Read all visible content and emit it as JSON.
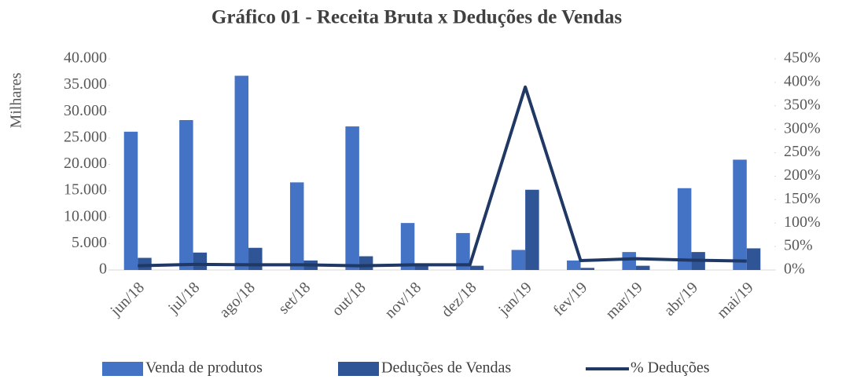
{
  "chart_data": {
    "type": "bar_line",
    "title": "Gráfico 01 - Receita Bruta x Deduções de Vendas",
    "y_label": "Milhares",
    "categories": [
      "jun/18",
      "jul/18",
      "ago/18",
      "set/18",
      "out/18",
      "nov/18",
      "dez/18",
      "jan/19",
      "fev/19",
      "mar/19",
      "abr/19",
      "mai/19"
    ],
    "series": [
      {
        "name": "Venda de produtos",
        "color": "#4472c4",
        "kind": "bar",
        "values": [
          26200,
          28400,
          36800,
          16600,
          27200,
          8900,
          7000,
          3800,
          1800,
          3400,
          15500,
          20900
        ]
      },
      {
        "name": "Deduções de Vendas",
        "color": "#2f5597",
        "kind": "bar",
        "values": [
          2300,
          3300,
          4200,
          1800,
          2600,
          1000,
          800,
          15200,
          400,
          800,
          3400,
          4100
        ]
      },
      {
        "name": "% Deduções",
        "color": "#1f3864",
        "kind": "line",
        "axis": "y2",
        "values": [
          9,
          12,
          11,
          11,
          9,
          11,
          11,
          390,
          20,
          24,
          21,
          19
        ]
      }
    ],
    "ylim": [
      0,
      40000
    ],
    "yticks": [
      0,
      {
        "value": 5000,
        "label": "5.000"
      },
      {
        "value": 10000,
        "label": "10.000"
      },
      {
        "value": 15000,
        "label": "15.000"
      },
      {
        "value": 20000,
        "label": "20.000"
      },
      {
        "value": 25000,
        "label": "25.000"
      },
      {
        "value": 30000,
        "label": "30.000"
      },
      {
        "value": 35000,
        "label": "35.000"
      },
      {
        "value": 40000,
        "label": "40.000"
      }
    ],
    "y2lim": [
      0,
      450
    ],
    "y2ticks": [
      {
        "value": 0,
        "label": "0%"
      },
      {
        "value": 50,
        "label": "50%"
      },
      {
        "value": 100,
        "label": "100%"
      },
      {
        "value": 150,
        "label": "150%"
      },
      {
        "value": 200,
        "label": "200%"
      },
      {
        "value": 250,
        "label": "250%"
      },
      {
        "value": 300,
        "label": "300%"
      },
      {
        "value": 350,
        "label": "350%"
      },
      {
        "value": 400,
        "label": "400%"
      },
      {
        "value": 450,
        "label": "450%"
      }
    ],
    "grid": false,
    "legend": "bottom"
  }
}
